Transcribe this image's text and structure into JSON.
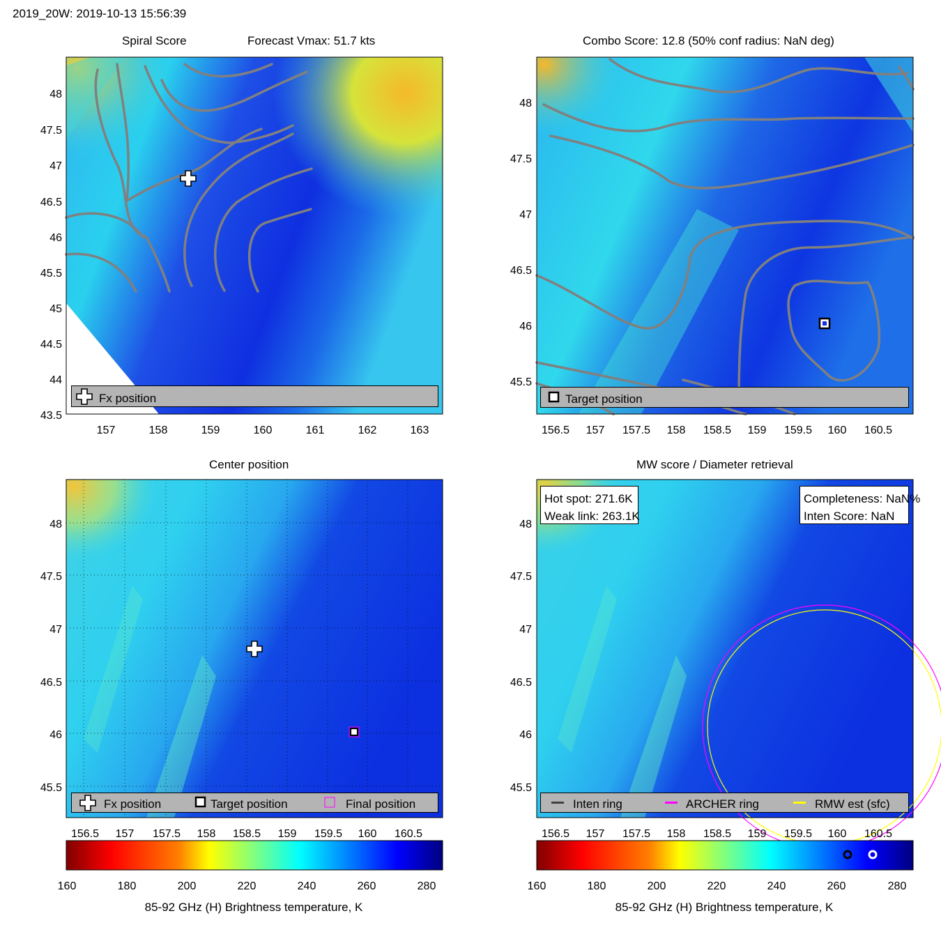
{
  "header": {
    "storm_time": "2019_20W: 2019-10-13 15:56:39"
  },
  "panels": {
    "spiral": {
      "title_left": "Spiral Score",
      "title_right": "Forecast Vmax: 51.7 kts",
      "legend": {
        "fx_label": "Fx position"
      }
    },
    "combo": {
      "title": "Combo Score: 12.8  (50% conf radius: NaN deg)",
      "legend": {
        "target_label": "Target position"
      }
    },
    "center": {
      "title": "Center position",
      "legend": {
        "fx_label": "Fx position",
        "target_label": "Target position",
        "final_label": "Final position"
      }
    },
    "mw": {
      "title": "MW score / Diameter retrieval",
      "info_left": {
        "hot_spot": "Hot spot: 271.6K",
        "weak_link": "Weak link: 263.1K"
      },
      "info_right": {
        "completeness": "Completeness: NaN%",
        "inten_score": "Inten Score: NaN"
      },
      "legend": {
        "inten_ring": "Inten ring",
        "archer_ring": "ARCHER ring",
        "rmw_est": "RMW est (sfc)"
      }
    }
  },
  "colorbar": {
    "label": "85-92 GHz (H) Brightness temperature, K",
    "ticks": [
      "160",
      "180",
      "200",
      "220",
      "240",
      "260",
      "280"
    ],
    "range": [
      160,
      285
    ],
    "markers": [
      263.1,
      271.6
    ]
  },
  "colors": {
    "fx_marker": "#ffffff",
    "target_marker": "#000000",
    "final_marker": "#ff00ff",
    "inten_ring": "#404040",
    "archer_ring": "#ff00ff",
    "rmw_ring": "#ffff00",
    "contours": "#808080",
    "legend_bg": "#b4b4b4"
  },
  "chart_data": [
    {
      "type": "heatmap",
      "panel": "spiral",
      "title": "Spiral Score  Forecast Vmax: 51.7 kts",
      "xlim": [
        156.25,
        163.4
      ],
      "ylim": [
        43.47,
        48.5
      ],
      "xticks": [
        "157",
        "158",
        "159",
        "160",
        "161",
        "162",
        "163"
      ],
      "yticks": [
        "43.5",
        "44",
        "44.5",
        "45",
        "45.5",
        "46",
        "46.5",
        "47",
        "47.5",
        "48"
      ],
      "fx_position": [
        158.6,
        46.8
      ]
    },
    {
      "type": "heatmap",
      "panel": "combo",
      "title": "Combo Score: 12.8  (50% conf radius: NaN deg)",
      "xlim": [
        156.3,
        160.9
      ],
      "ylim": [
        45.2,
        48.4
      ],
      "xticks": [
        "156.5",
        "157",
        "157.5",
        "158",
        "158.5",
        "159",
        "159.5",
        "160",
        "160.5"
      ],
      "yticks": [
        "45.5",
        "46",
        "46.5",
        "47",
        "47.5",
        "48"
      ],
      "target_position": [
        159.83,
        46.02
      ]
    },
    {
      "type": "heatmap",
      "panel": "center",
      "title": "Center position",
      "xlim": [
        156.3,
        160.9
      ],
      "ylim": [
        45.2,
        48.4
      ],
      "xticks": [
        "156.5",
        "157",
        "157.5",
        "158",
        "158.5",
        "159",
        "159.5",
        "160",
        "160.5"
      ],
      "yticks": [
        "45.5",
        "46",
        "46.5",
        "47",
        "47.5",
        "48"
      ],
      "fx_position": [
        158.6,
        46.8
      ],
      "target_position": [
        159.83,
        46.0
      ],
      "final_position": [
        159.83,
        46.0
      ],
      "grid": true
    },
    {
      "type": "heatmap",
      "panel": "mw",
      "title": "MW score / Diameter retrieval",
      "xlim": [
        156.3,
        160.9
      ],
      "ylim": [
        45.2,
        48.4
      ],
      "xticks": [
        "156.5",
        "157",
        "157.5",
        "158",
        "158.5",
        "159",
        "159.5",
        "160",
        "160.5"
      ],
      "yticks": [
        "45.5",
        "46",
        "46.5",
        "47",
        "47.5",
        "48"
      ],
      "hot_spot_K": 271.6,
      "weak_link_K": 263.1,
      "rings": [
        {
          "name": "ARCHER ring",
          "center": [
            159.83,
            46.0
          ],
          "radius_deg": 1.05
        },
        {
          "name": "RMW est (sfc)",
          "center": [
            159.83,
            46.0
          ],
          "radius_deg": 1.0
        }
      ]
    }
  ]
}
